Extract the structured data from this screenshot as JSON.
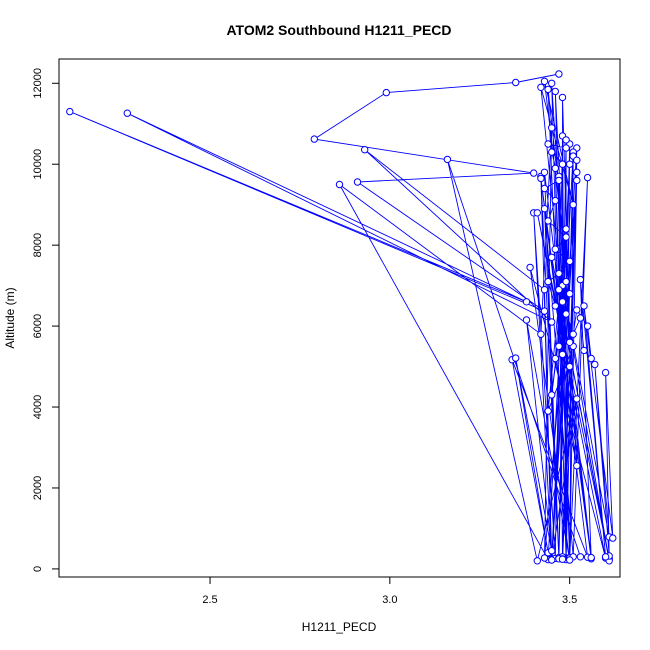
{
  "chart_data": {
    "type": "line",
    "title": "ATOM2 Southbound H1211_PECD",
    "xlabel": "H1211_PECD",
    "ylabel": "Altitude (m)",
    "xlim": [
      2.08,
      3.64
    ],
    "ylim": [
      -200,
      12600
    ],
    "xticks": [
      2.5,
      3.0,
      3.5
    ],
    "yticks": [
      0,
      2000,
      4000,
      6000,
      8000,
      10000,
      12000
    ],
    "line_color": "#0000ff",
    "marker": "open-circle",
    "grid": false,
    "legend": "none",
    "series": [
      {
        "points": [
          [
            3.47,
            12230
          ],
          [
            3.35,
            12020
          ],
          [
            2.99,
            11770
          ],
          [
            2.79,
            10620
          ],
          [
            3.4,
            9780
          ],
          [
            2.91,
            9560
          ],
          [
            3.43,
            6370
          ],
          [
            2.11,
            11300
          ],
          [
            3.38,
            6600
          ],
          [
            2.27,
            11260
          ],
          [
            3.45,
            6100
          ],
          [
            2.93,
            10360
          ],
          [
            3.43,
            6900
          ],
          [
            3.45,
            250
          ],
          [
            3.52,
            4200
          ],
          [
            3.41,
            200
          ],
          [
            3.16,
            10120
          ],
          [
            3.53,
            300
          ],
          [
            3.47,
            270
          ],
          [
            3.42,
            9700
          ],
          [
            3.45,
            230
          ],
          [
            3.5,
            10000
          ],
          [
            3.44,
            230
          ],
          [
            2.86,
            9500
          ],
          [
            3.42,
            5800
          ],
          [
            3.45,
            10900
          ],
          [
            3.43,
            270
          ],
          [
            3.52,
            9600
          ],
          [
            3.45,
            240
          ],
          [
            3.4,
            8800
          ],
          [
            3.46,
            260
          ],
          [
            3.48,
            10700
          ],
          [
            3.49,
            270
          ],
          [
            3.5,
            10500
          ],
          [
            3.47,
            280
          ],
          [
            3.49,
            10600
          ],
          [
            3.49,
            250
          ],
          [
            3.52,
            10400
          ],
          [
            3.45,
            220
          ],
          [
            3.51,
            10300
          ],
          [
            3.5,
            250
          ],
          [
            3.51,
            10200
          ],
          [
            3.48,
            300
          ],
          [
            3.52,
            10100
          ],
          [
            3.49,
            230
          ],
          [
            3.46,
            9900
          ],
          [
            3.5,
            260
          ],
          [
            3.52,
            9800
          ],
          [
            3.48,
            250
          ],
          [
            3.47,
            9700
          ],
          [
            3.5,
            270
          ],
          [
            3.55,
            9670
          ],
          [
            3.51,
            300
          ],
          [
            3.43,
            8900
          ],
          [
            3.47,
            250
          ],
          [
            3.43,
            9800
          ],
          [
            3.56,
            250
          ],
          [
            3.42,
            9650
          ],
          [
            3.55,
            290
          ],
          [
            3.34,
            5170
          ],
          [
            3.44,
            400
          ],
          [
            3.35,
            5210
          ],
          [
            3.45,
            450
          ],
          [
            3.38,
            6150
          ],
          [
            3.5,
            220
          ],
          [
            3.39,
            7450
          ],
          [
            3.6,
            270
          ],
          [
            3.41,
            8800
          ],
          [
            3.61,
            250
          ],
          [
            3.45,
            7700
          ],
          [
            3.61,
            200
          ],
          [
            3.48,
            7000
          ],
          [
            3.61,
            790
          ],
          [
            3.57,
            5050
          ],
          [
            3.61,
            320
          ],
          [
            3.6,
            4850
          ],
          [
            3.62,
            760
          ],
          [
            3.54,
            6500
          ],
          [
            3.6,
            300
          ],
          [
            3.53,
            7150
          ],
          [
            3.56,
            280
          ],
          [
            3.5,
            5000
          ],
          [
            3.48,
            240
          ],
          [
            3.51,
            5500
          ],
          [
            3.44,
            3900
          ],
          [
            3.49,
            8400
          ],
          [
            3.46,
            5200
          ],
          [
            3.52,
            2550
          ],
          [
            3.49,
            7100
          ],
          [
            3.45,
            4300
          ],
          [
            3.48,
            6600
          ],
          [
            3.42,
            11900
          ],
          [
            3.51,
            9000
          ],
          [
            3.43,
            12050
          ],
          [
            3.5,
            6800
          ],
          [
            3.44,
            11850
          ],
          [
            3.47,
            5500
          ],
          [
            3.45,
            12000
          ],
          [
            3.49,
            6300
          ],
          [
            3.46,
            11800
          ],
          [
            3.48,
            5300
          ],
          [
            3.48,
            11650
          ],
          [
            3.5,
            5600
          ],
          [
            3.53,
            6200
          ],
          [
            3.54,
            5400
          ],
          [
            3.56,
            5200
          ],
          [
            3.55,
            6000
          ],
          [
            3.52,
            6400
          ],
          [
            3.51,
            5800
          ],
          [
            3.47,
            6900
          ],
          [
            3.46,
            6500
          ],
          [
            3.44,
            7100
          ],
          [
            3.47,
            7300
          ],
          [
            3.5,
            7600
          ],
          [
            3.46,
            7900
          ],
          [
            3.49,
            8200
          ],
          [
            3.44,
            8600
          ],
          [
            3.46,
            9100
          ],
          [
            3.43,
            9400
          ],
          [
            3.47,
            9600
          ],
          [
            3.45,
            10300
          ],
          [
            3.48,
            10000
          ],
          [
            3.44,
            10500
          ],
          [
            3.49,
            10400
          ]
        ]
      }
    ]
  }
}
